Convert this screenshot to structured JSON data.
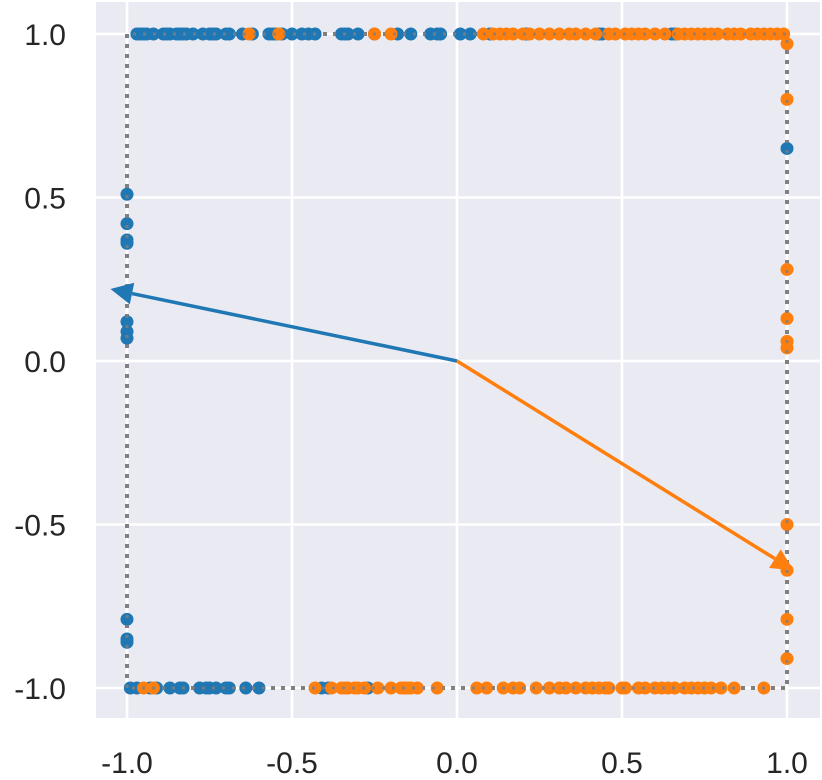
{
  "chart_data": {
    "type": "scatter",
    "title": "",
    "xlabel": "",
    "ylabel": "",
    "xlim": [
      -1.1,
      1.05
    ],
    "ylim": [
      -1.1,
      1.05
    ],
    "grid": true,
    "x_ticks": [
      "-1.0",
      "-0.5",
      "0.0",
      "0.5",
      "1.0"
    ],
    "y_ticks": [
      "1.0",
      "0.5",
      "0.0",
      "-0.5",
      "-1.0"
    ],
    "boundary_square": {
      "corners": [
        [
          -1,
          -1
        ],
        [
          -1,
          1
        ],
        [
          1,
          1
        ],
        [
          1,
          -1
        ]
      ],
      "style": "dotted",
      "color": "#808080"
    },
    "colors": {
      "blue": "#1f77b4",
      "orange": "#ff7f0e",
      "background": "#eaeaf2",
      "grid": "#ffffff"
    },
    "arrows": [
      {
        "color": "blue",
        "from": [
          0,
          0
        ],
        "to": [
          -1.05,
          0.22
        ]
      },
      {
        "color": "orange",
        "from": [
          0,
          0
        ],
        "to": [
          1.02,
          -0.64
        ]
      }
    ],
    "series": [
      {
        "color": "blue",
        "points": [
          [
            -0.97,
            1
          ],
          [
            -0.96,
            1
          ],
          [
            -0.95,
            1
          ],
          [
            -0.94,
            1
          ],
          [
            -0.92,
            1
          ],
          [
            -0.89,
            1
          ],
          [
            -0.88,
            1
          ],
          [
            -0.87,
            1
          ],
          [
            -0.85,
            1
          ],
          [
            -0.84,
            1
          ],
          [
            -0.83,
            1
          ],
          [
            -0.82,
            1
          ],
          [
            -0.8,
            1
          ],
          [
            -0.77,
            1
          ],
          [
            -0.75,
            1
          ],
          [
            -0.74,
            1
          ],
          [
            -0.73,
            1
          ],
          [
            -0.7,
            1
          ],
          [
            -0.69,
            1
          ],
          [
            -0.65,
            1
          ],
          [
            -0.62,
            1
          ],
          [
            -0.57,
            1
          ],
          [
            -0.56,
            1
          ],
          [
            -0.55,
            1
          ],
          [
            -0.53,
            1
          ],
          [
            -0.5,
            1
          ],
          [
            -0.47,
            1
          ],
          [
            -0.45,
            1
          ],
          [
            -0.43,
            1
          ],
          [
            -0.35,
            1
          ],
          [
            -0.34,
            1
          ],
          [
            -0.33,
            1
          ],
          [
            -0.3,
            1
          ],
          [
            -0.25,
            1
          ],
          [
            -0.18,
            1
          ],
          [
            -0.14,
            1
          ],
          [
            -0.08,
            1
          ],
          [
            -0.06,
            1
          ],
          [
            -0.05,
            1
          ],
          [
            0.01,
            1
          ],
          [
            0.04,
            1
          ],
          [
            0.1,
            1
          ],
          [
            0.21,
            1
          ],
          [
            0.43,
            1
          ],
          [
            0.44,
            1
          ],
          [
            0.65,
            1
          ],
          [
            0.66,
            1
          ],
          [
            -1,
            0.51
          ],
          [
            -1,
            0.42
          ],
          [
            -1,
            0.37
          ],
          [
            -1,
            0.36
          ],
          [
            -1,
            0.12
          ],
          [
            -1,
            0.09
          ],
          [
            -1,
            0.07
          ],
          [
            -1,
            -0.79
          ],
          [
            -1,
            -0.85
          ],
          [
            -1,
            -0.86
          ],
          [
            1,
            0.65
          ],
          [
            -0.99,
            -1
          ],
          [
            -0.97,
            -1
          ],
          [
            -0.93,
            -1
          ],
          [
            -0.91,
            -1
          ],
          [
            -0.87,
            -1
          ],
          [
            -0.84,
            -1
          ],
          [
            -0.83,
            -1
          ],
          [
            -0.78,
            -1
          ],
          [
            -0.76,
            -1
          ],
          [
            -0.75,
            -1
          ],
          [
            -0.73,
            -1
          ],
          [
            -0.7,
            -1
          ],
          [
            -0.69,
            -1
          ],
          [
            -0.64,
            -1
          ],
          [
            -0.6,
            -1
          ],
          [
            -0.41,
            -1
          ],
          [
            -0.39,
            -1
          ],
          [
            -0.27,
            -1
          ]
        ]
      },
      {
        "color": "orange",
        "points": [
          [
            -0.63,
            1
          ],
          [
            -0.54,
            1
          ],
          [
            -0.25,
            1
          ],
          [
            -0.2,
            1
          ],
          [
            0.08,
            1
          ],
          [
            0.11,
            1
          ],
          [
            0.13,
            1
          ],
          [
            0.15,
            1
          ],
          [
            0.17,
            1
          ],
          [
            0.2,
            1
          ],
          [
            0.22,
            1
          ],
          [
            0.25,
            1
          ],
          [
            0.28,
            1
          ],
          [
            0.31,
            1
          ],
          [
            0.34,
            1
          ],
          [
            0.36,
            1
          ],
          [
            0.39,
            1
          ],
          [
            0.42,
            1
          ],
          [
            0.46,
            1
          ],
          [
            0.48,
            1
          ],
          [
            0.51,
            1
          ],
          [
            0.53,
            1
          ],
          [
            0.55,
            1
          ],
          [
            0.57,
            1
          ],
          [
            0.6,
            1
          ],
          [
            0.63,
            1
          ],
          [
            0.67,
            1
          ],
          [
            0.69,
            1
          ],
          [
            0.71,
            1
          ],
          [
            0.73,
            1
          ],
          [
            0.75,
            1
          ],
          [
            0.77,
            1
          ],
          [
            0.79,
            1
          ],
          [
            0.82,
            1
          ],
          [
            0.84,
            1
          ],
          [
            0.86,
            1
          ],
          [
            0.89,
            1
          ],
          [
            0.91,
            1
          ],
          [
            0.93,
            1
          ],
          [
            0.95,
            1
          ],
          [
            0.97,
            1
          ],
          [
            0.99,
            1
          ],
          [
            1,
            0.97
          ],
          [
            1,
            0.8
          ],
          [
            1,
            0.28
          ],
          [
            1,
            0.13
          ],
          [
            1,
            0.06
          ],
          [
            1,
            0.04
          ],
          [
            1,
            -0.5
          ],
          [
            1,
            -0.64
          ],
          [
            1,
            -0.79
          ],
          [
            1,
            -0.91
          ],
          [
            -0.95,
            -1
          ],
          [
            -0.92,
            -1
          ],
          [
            -0.43,
            -1
          ],
          [
            -0.38,
            -1
          ],
          [
            -0.35,
            -1
          ],
          [
            -0.34,
            -1
          ],
          [
            -0.33,
            -1
          ],
          [
            -0.31,
            -1
          ],
          [
            -0.3,
            -1
          ],
          [
            -0.28,
            -1
          ],
          [
            -0.24,
            -1
          ],
          [
            -0.2,
            -1
          ],
          [
            -0.17,
            -1
          ],
          [
            -0.16,
            -1
          ],
          [
            -0.15,
            -1
          ],
          [
            -0.14,
            -1
          ],
          [
            -0.12,
            -1
          ],
          [
            -0.06,
            -1
          ],
          [
            0.06,
            -1
          ],
          [
            0.09,
            -1
          ],
          [
            0.14,
            -1
          ],
          [
            0.17,
            -1
          ],
          [
            0.19,
            -1
          ],
          [
            0.24,
            -1
          ],
          [
            0.28,
            -1
          ],
          [
            0.31,
            -1
          ],
          [
            0.33,
            -1
          ],
          [
            0.36,
            -1
          ],
          [
            0.39,
            -1
          ],
          [
            0.41,
            -1
          ],
          [
            0.43,
            -1
          ],
          [
            0.45,
            -1
          ],
          [
            0.46,
            -1
          ],
          [
            0.5,
            -1
          ],
          [
            0.51,
            -1
          ],
          [
            0.55,
            -1
          ],
          [
            0.57,
            -1
          ],
          [
            0.6,
            -1
          ],
          [
            0.62,
            -1
          ],
          [
            0.64,
            -1
          ],
          [
            0.66,
            -1
          ],
          [
            0.69,
            -1
          ],
          [
            0.71,
            -1
          ],
          [
            0.73,
            -1
          ],
          [
            0.75,
            -1
          ],
          [
            0.77,
            -1
          ],
          [
            0.8,
            -1
          ],
          [
            0.84,
            -1
          ],
          [
            0.93,
            -1
          ]
        ]
      }
    ]
  }
}
